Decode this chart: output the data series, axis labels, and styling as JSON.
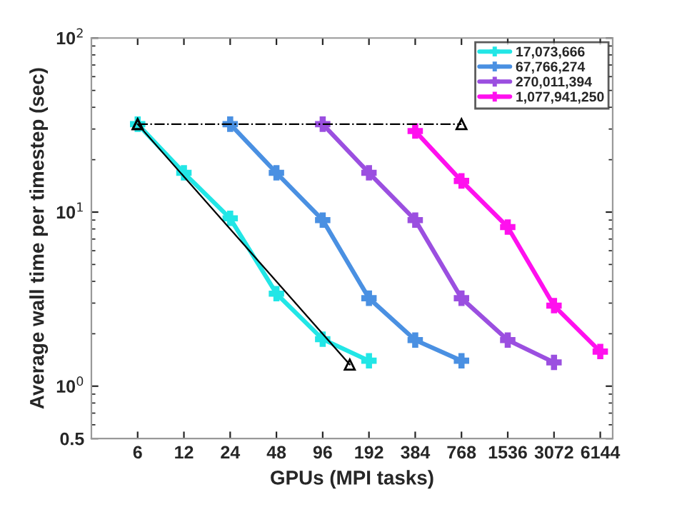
{
  "chart_data": {
    "type": "line",
    "xlabel": "GPUs (MPI tasks)",
    "ylabel": "Average wall time per timestep (sec)",
    "log": "xy",
    "xlim": [
      3,
      7400
    ],
    "xticks": [
      6,
      12,
      24,
      48,
      96,
      192,
      384,
      768,
      1536,
      3072,
      6144
    ],
    "ylim": [
      0.5,
      100
    ],
    "yticks": [
      {
        "value": 0.5,
        "label": "0.5"
      },
      {
        "value": 1,
        "label": "10$^{0}$"
      },
      {
        "value": 10,
        "label": "10$^{1}$"
      },
      {
        "value": 100,
        "label": "10$^{2}$"
      }
    ],
    "grid": false,
    "legend": "top right",
    "marker": "cross",
    "line_style": "solid",
    "series": [
      {
        "name": "17,073,666",
        "color": "#22e6e6",
        "x": [
          6,
          12,
          24,
          48,
          96,
          192
        ],
        "values": [
          32,
          16.8,
          9.2,
          3.4,
          1.86,
          1.4
        ]
      },
      {
        "name": "67,766,274",
        "color": "#4a90e2",
        "x": [
          24,
          48,
          96,
          192,
          384,
          768
        ],
        "values": [
          32,
          16.8,
          9.0,
          3.2,
          1.84,
          1.4
        ]
      },
      {
        "name": "270,011,394",
        "color": "#9b4fe0",
        "x": [
          96,
          192,
          384,
          768,
          1536,
          3072
        ],
        "values": [
          32,
          16.8,
          9.0,
          3.2,
          1.84,
          1.37
        ]
      },
      {
        "name": "1,077,941,250",
        "color": "#ff10ee",
        "x": [
          384,
          768,
          1536,
          3072,
          6144
        ],
        "values": [
          29.2,
          15.1,
          8.2,
          2.9,
          1.58
        ]
      },
      {
        "color": "#000000",
        "x": [
          6,
          768
        ],
        "values": [
          32,
          32
        ],
        "marker": "triangle",
        "line_style": "dashed"
      },
      {
        "color": "#000000",
        "x": [
          6,
          144
        ],
        "values": [
          32,
          1.33
        ],
        "marker": "triangle",
        "line_style": "solid"
      }
    ]
  }
}
